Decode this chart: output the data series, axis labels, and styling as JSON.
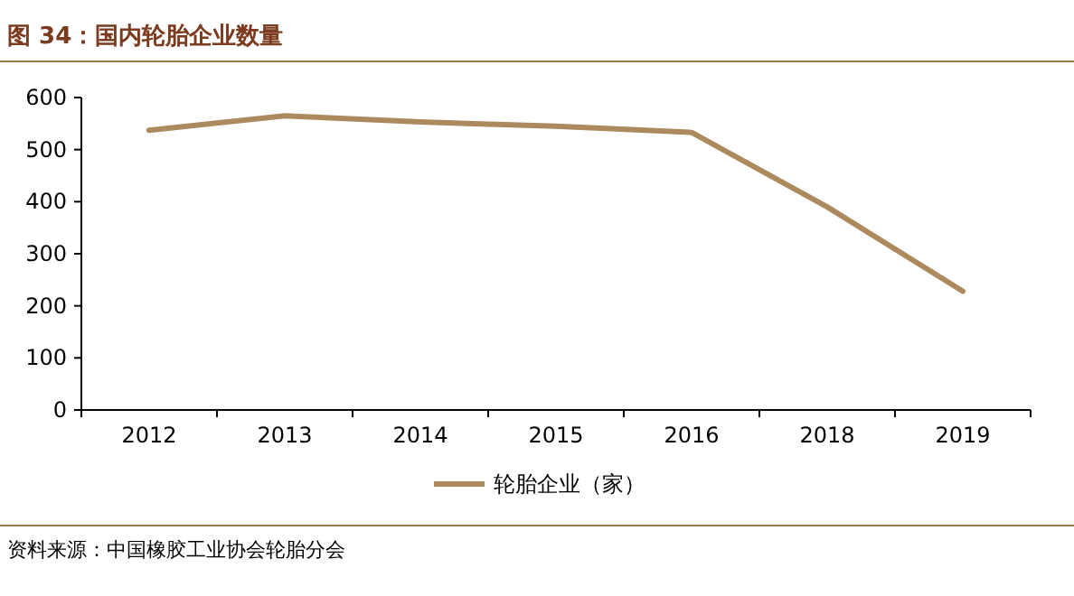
{
  "chart_data": {
    "type": "line",
    "title": "图 34：国内轮胎企业数量",
    "categories": [
      "2012",
      "2013",
      "2014",
      "2015",
      "2016",
      "2018",
      "2019"
    ],
    "series": [
      {
        "name": "轮胎企业（家）",
        "color": "#ad8a5e",
        "values": [
          537,
          565,
          553,
          545,
          533,
          390,
          228
        ]
      }
    ],
    "ylim": [
      0,
      600
    ],
    "yticks": [
      0,
      100,
      200,
      300,
      400,
      500,
      600
    ],
    "legend": "bottom",
    "grid": false,
    "marker": "none",
    "annotations": [
      "资料来源：中国橡胶工业协会轮胎分会"
    ]
  }
}
